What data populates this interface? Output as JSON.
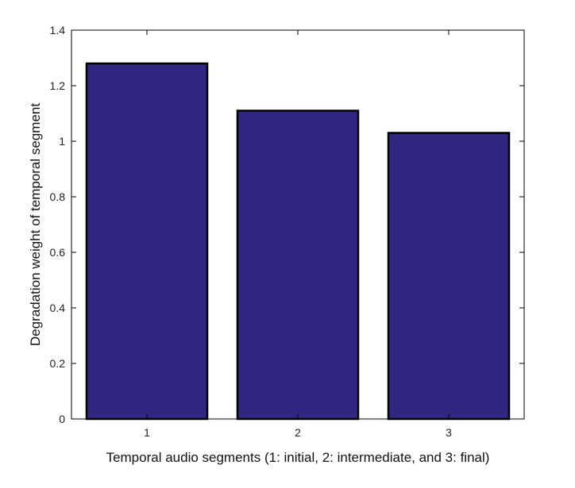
{
  "chart_data": {
    "type": "bar",
    "categories": [
      "1",
      "2",
      "3"
    ],
    "values": [
      1.28,
      1.11,
      1.03
    ],
    "title": "",
    "xlabel": "Temporal audio segments (1: initial, 2: intermediate, and 3: final)",
    "ylabel": "Degradation weight of temporal segment",
    "ylim": [
      0,
      1.4
    ],
    "yticks": [
      "0",
      "0.2",
      "0.4",
      "0.6",
      "0.8",
      "1",
      "1.2",
      "1.4"
    ],
    "grid": false,
    "legend": "none",
    "bar_color": "#312783",
    "bar_edge_color": "#000000"
  }
}
